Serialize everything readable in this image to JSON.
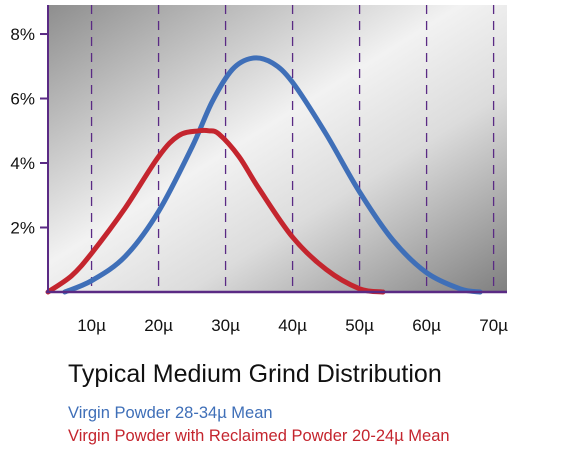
{
  "chart_data": {
    "type": "line",
    "title": "Typical Medium Grind Distribution",
    "xlabel": "",
    "ylabel": "",
    "x_tick_labels": [
      "10µ",
      "20µ",
      "30µ",
      "40µ",
      "50µ",
      "60µ",
      "70µ"
    ],
    "x_ticks": [
      10,
      20,
      30,
      40,
      50,
      60,
      70
    ],
    "y_tick_labels": [
      "2%",
      "4%",
      "6%",
      "8%"
    ],
    "y_ticks": [
      2,
      4,
      6,
      8
    ],
    "xlim": [
      3.5,
      72
    ],
    "ylim": [
      0,
      8.9
    ],
    "grid": "vertical dashed",
    "legend_position": "bottom-left below chart",
    "series": [
      {
        "name": "Virgin Powder 28-34µ Mean",
        "color": "#3f6fb8",
        "x": [
          6,
          10,
          15,
          20,
          25,
          28,
          31,
          34,
          37,
          40,
          45,
          50,
          55,
          60,
          65,
          68
        ],
        "y": [
          0.0,
          0.35,
          1.1,
          2.5,
          4.5,
          5.9,
          6.9,
          7.25,
          7.1,
          6.5,
          4.9,
          3.1,
          1.6,
          0.6,
          0.1,
          0.0
        ]
      },
      {
        "name": "Virgin Powder with Reclaimed Powder 20-24µ Mean",
        "color": "#c4252e",
        "x": [
          3.5,
          7,
          10,
          15,
          20,
          23,
          26,
          27.5,
          29,
          32,
          35,
          40,
          45,
          50,
          53.5
        ],
        "y": [
          0.0,
          0.5,
          1.2,
          2.6,
          4.2,
          4.85,
          5.0,
          5.0,
          4.9,
          4.2,
          3.2,
          1.7,
          0.7,
          0.1,
          0.0
        ]
      }
    ]
  },
  "colors": {
    "axis": "#5a2a84",
    "gridline": "#5a2a84",
    "blue_series": "#3f6fb8",
    "red_series": "#c4252e"
  }
}
